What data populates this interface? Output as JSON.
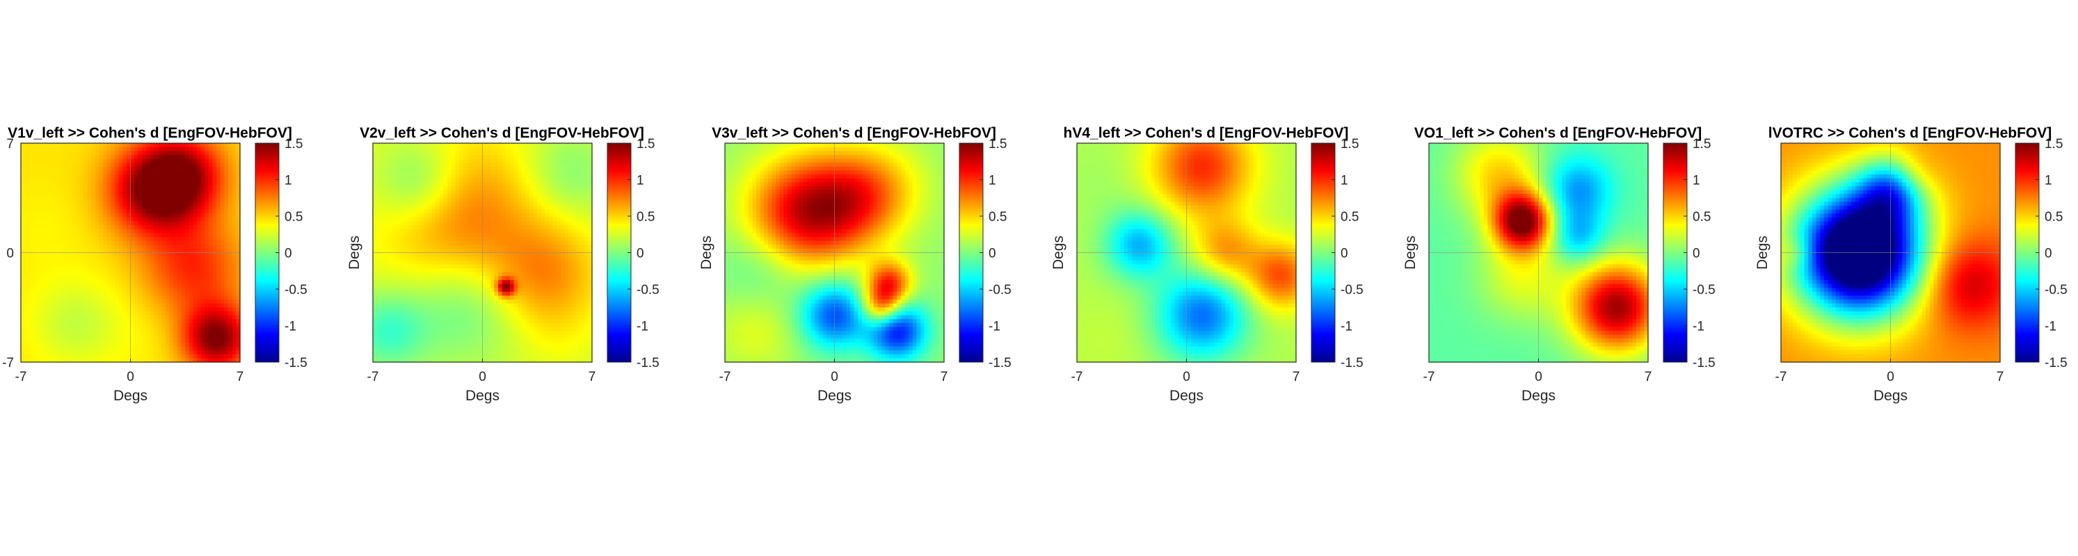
{
  "chart_data": [
    {
      "type": "heatmap",
      "title": "V1v_left >> Cohen's d [EngFOV-HebFOV]",
      "xlabel": "Degs",
      "ylabel": "",
      "xlim": [
        -7,
        7
      ],
      "ylim": [
        -7,
        7
      ],
      "xticks": [
        "-7",
        "0",
        "7"
      ],
      "yticks": [
        "-7",
        "0",
        "7"
      ],
      "grid": true,
      "colormap": "jet",
      "clim": [
        -1.5,
        1.5
      ],
      "colorbar_ticks": [
        "-1.5",
        "-1",
        "-0.5",
        "0",
        "0.5",
        "1",
        "1.5"
      ],
      "base_value": 0.45,
      "blobs": [
        {
          "x": 1.5,
          "y": 4.0,
          "value": 1.5,
          "radius": 2.0
        },
        {
          "x": 3.5,
          "y": 5.0,
          "value": 1.2,
          "radius": 1.8
        },
        {
          "x": 4.0,
          "y": -1.0,
          "value": 1.0,
          "radius": 2.2
        },
        {
          "x": 5.5,
          "y": -5.5,
          "value": 1.5,
          "radius": 1.5
        },
        {
          "x": -3.5,
          "y": -4.5,
          "value": 0.2,
          "radius": 2.0
        },
        {
          "x": -5.5,
          "y": 1.5,
          "value": 0.4,
          "radius": 2.0
        },
        {
          "x": 1.0,
          "y": -5.0,
          "value": 0.4,
          "radius": 2.0
        }
      ]
    },
    {
      "type": "heatmap",
      "title": "V2v_left >> Cohen's d [EngFOV-HebFOV]",
      "xlabel": "Degs",
      "ylabel": "Degs",
      "xlim": [
        -7,
        7
      ],
      "ylim": [
        -7,
        7
      ],
      "xticks": [
        "-7",
        "0",
        "7"
      ],
      "yticks": [],
      "grid": true,
      "colormap": "jet",
      "clim": [
        -1.5,
        1.5
      ],
      "colorbar_ticks": [
        "-1.5",
        "-1",
        "-0.5",
        "0",
        "0.5",
        "1",
        "1.5"
      ],
      "base_value": 0.25,
      "blobs": [
        {
          "x": -1.5,
          "y": 2.5,
          "value": 0.8,
          "radius": 3.5
        },
        {
          "x": -4.0,
          "y": 4.5,
          "value": -0.2,
          "radius": 2.0
        },
        {
          "x": -1.0,
          "y": -3.5,
          "value": -0.1,
          "radius": 2.5
        },
        {
          "x": 4.0,
          "y": -1.5,
          "value": 0.7,
          "radius": 2.5
        },
        {
          "x": 1.5,
          "y": -2.2,
          "value": 1.3,
          "radius": 0.4
        },
        {
          "x": 5.5,
          "y": 5.0,
          "value": 0.0,
          "radius": 2.0
        },
        {
          "x": -6.0,
          "y": -5.0,
          "value": -0.2,
          "radius": 1.8
        },
        {
          "x": 5.0,
          "y": -5.5,
          "value": 0.3,
          "radius": 1.5
        }
      ]
    },
    {
      "type": "heatmap",
      "title": "V3v_left >> Cohen's d [EngFOV-HebFOV]",
      "xlabel": "Degs",
      "ylabel": "Degs",
      "xlim": [
        -7,
        7
      ],
      "ylim": [
        -7,
        7
      ],
      "xticks": [
        "-7",
        "0",
        "7"
      ],
      "yticks": [],
      "grid": true,
      "colormap": "jet",
      "clim": [
        -1.5,
        1.5
      ],
      "colorbar_ticks": [
        "-1.5",
        "-1",
        "-0.5",
        "0",
        "0.5",
        "1",
        "1.5"
      ],
      "base_value": 0.05,
      "blobs": [
        {
          "x": -2.0,
          "y": 2.5,
          "value": 1.2,
          "radius": 2.5
        },
        {
          "x": 1.5,
          "y": 3.5,
          "value": 0.8,
          "radius": 2.2
        },
        {
          "x": 4.0,
          "y": 4.5,
          "value": 0.2,
          "radius": 2.0
        },
        {
          "x": 3.5,
          "y": -2.0,
          "value": 1.0,
          "radius": 1.0
        },
        {
          "x": 3.0,
          "y": -3.5,
          "value": 0.9,
          "radius": 0.9
        },
        {
          "x": 0.0,
          "y": -4.0,
          "value": -0.9,
          "radius": 1.5
        },
        {
          "x": 4.0,
          "y": -5.0,
          "value": -1.1,
          "radius": 1.3
        },
        {
          "x": -4.5,
          "y": -1.0,
          "value": -0.2,
          "radius": 2.0
        },
        {
          "x": -5.0,
          "y": -5.0,
          "value": 0.3,
          "radius": 2.0
        }
      ]
    },
    {
      "type": "heatmap",
      "title": "hV4_left >> Cohen's d [EngFOV-HebFOV]",
      "xlabel": "Degs",
      "ylabel": "Degs",
      "xlim": [
        -7,
        7
      ],
      "ylim": [
        -7,
        7
      ],
      "xticks": [
        "-7",
        "0",
        "7"
      ],
      "yticks": [],
      "grid": true,
      "colormap": "jet",
      "clim": [
        -1.5,
        1.5
      ],
      "colorbar_ticks": [
        "-1.5",
        "-1",
        "-0.5",
        "0",
        "0.5",
        "1",
        "1.5"
      ],
      "base_value": 0.15,
      "blobs": [
        {
          "x": 1.0,
          "y": 5.5,
          "value": 1.0,
          "radius": 2.2
        },
        {
          "x": -3.0,
          "y": 0.5,
          "value": -0.6,
          "radius": 1.5
        },
        {
          "x": 1.0,
          "y": -4.0,
          "value": -0.8,
          "radius": 2.0
        },
        {
          "x": 2.5,
          "y": 0.0,
          "value": 0.7,
          "radius": 1.5
        },
        {
          "x": 6.0,
          "y": -1.5,
          "value": 0.9,
          "radius": 1.5
        },
        {
          "x": -5.5,
          "y": 4.5,
          "value": 0.1,
          "radius": 2.0
        },
        {
          "x": -5.0,
          "y": -5.5,
          "value": 0.2,
          "radius": 2.0
        }
      ]
    },
    {
      "type": "heatmap",
      "title": "VO1_left >> Cohen's d [EngFOV-HebFOV]",
      "xlabel": "Degs",
      "ylabel": "Degs",
      "xlim": [
        -7,
        7
      ],
      "ylim": [
        -7,
        7
      ],
      "xticks": [
        "-7",
        "0",
        "7"
      ],
      "yticks": [],
      "grid": true,
      "colormap": "jet",
      "clim": [
        -1.5,
        1.5
      ],
      "colorbar_ticks": [
        "-1.5",
        "-1",
        "-0.5",
        "0",
        "0.5",
        "1",
        "1.5"
      ],
      "base_value": -0.1,
      "blobs": [
        {
          "x": -1.0,
          "y": 2.0,
          "value": 1.5,
          "radius": 1.3
        },
        {
          "x": 5.0,
          "y": -3.5,
          "value": 1.4,
          "radius": 2.0
        },
        {
          "x": 2.5,
          "y": 4.0,
          "value": -0.7,
          "radius": 1.5
        },
        {
          "x": 2.5,
          "y": 1.0,
          "value": -0.6,
          "radius": 1.2
        },
        {
          "x": -2.5,
          "y": 5.0,
          "value": 0.5,
          "radius": 2.0
        },
        {
          "x": -1.0,
          "y": -1.5,
          "value": 0.3,
          "radius": 2.0
        }
      ]
    },
    {
      "type": "heatmap",
      "title": "lVOTRC >> Cohen's d [EngFOV-HebFOV]",
      "xlabel": "Degs",
      "ylabel": "Degs",
      "xlim": [
        -7,
        7
      ],
      "ylim": [
        -7,
        7
      ],
      "xticks": [
        "-7",
        "0",
        "7"
      ],
      "yticks": [],
      "grid": true,
      "colormap": "jet",
      "clim": [
        -1.5,
        1.5
      ],
      "colorbar_ticks": [
        "-1.5",
        "-1",
        "-0.5",
        "0",
        "0.5",
        "1",
        "1.5"
      ],
      "base_value": 0.7,
      "blobs": [
        {
          "x": -2.0,
          "y": 0.0,
          "value": -2.2,
          "radius": 2.8
        },
        {
          "x": 5.0,
          "y": -2.0,
          "value": 1.3,
          "radius": 2.0
        },
        {
          "x": 1.5,
          "y": 5.0,
          "value": 0.9,
          "radius": 1.0
        },
        {
          "x": -6.0,
          "y": 0.0,
          "value": 1.0,
          "radius": 0.8
        },
        {
          "x": 0.0,
          "y": 4.0,
          "value": -0.3,
          "radius": 1.5
        }
      ]
    }
  ]
}
